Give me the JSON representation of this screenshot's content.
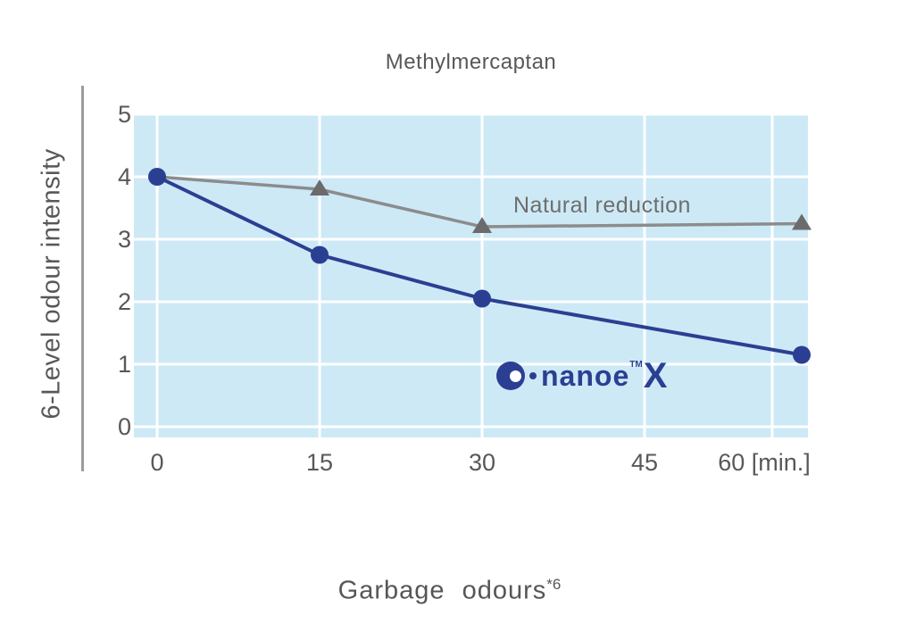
{
  "title": "Methylmercaptan",
  "y_axis_label": "6-Level odour intensity",
  "caption": {
    "text": "Garbage odours",
    "footnote": "*6"
  },
  "annotations": {
    "natural_label": "Natural reduction",
    "nanoe_logo": {
      "brand": "nanoe",
      "tm": "TM",
      "x": "X"
    }
  },
  "colors": {
    "plot_bg": "#cde9f6",
    "grid": "#ffffff",
    "nanoe_blue": "#2b3f92",
    "natural_gray": "#8c8c8c",
    "marker_gray": "#6b6b6b",
    "text_gray": "#58585a",
    "axis_bar": "#9b9b9b"
  },
  "chart_data": {
    "type": "line",
    "title": "Methylmercaptan",
    "ylabel": "6-Level odour intensity",
    "xlabel": "Garbage odours*6",
    "x_unit": "[min.]",
    "x_minutes": [
      0,
      15,
      30,
      60
    ],
    "series": [
      {
        "name": "Natural reduction",
        "marker": "triangle",
        "color": "#8c8c8c",
        "marker_color": "#6b6b6b",
        "values": [
          4.0,
          3.8,
          3.2,
          3.25
        ],
        "marker_at_first_point": false
      },
      {
        "name": "nanoe X",
        "marker": "circle",
        "color": "#2b3f92",
        "marker_color": "#2b3f92",
        "values": [
          4.0,
          2.75,
          2.05,
          1.15
        ],
        "marker_at_first_point": true
      }
    ],
    "ylim": [
      0,
      5
    ],
    "y_ticks": [
      0,
      1,
      2,
      3,
      4,
      5
    ],
    "x_tick_labels": [
      "0",
      "15",
      "30",
      "45",
      "60 [min.]"
    ],
    "grid": true,
    "legend": "inline-annotations",
    "plot_bg": "#cde9f6"
  }
}
